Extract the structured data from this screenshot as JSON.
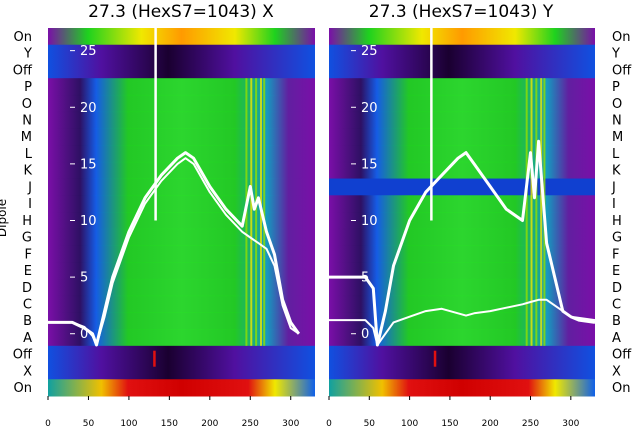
{
  "colors": {
    "background": "#7a0fa8",
    "low": "#1a0030",
    "mid_blue": "#1060e8",
    "green": "#1ed21e",
    "yellow": "#f0e800",
    "orange": "#ff9a00",
    "red": "#e01010",
    "trace": "#ffffff"
  },
  "chart_data": [
    {
      "type": "heatmap",
      "title": "27.3 (HexS7=1043) X",
      "ylabel": "Dipole",
      "row_labels": [
        "On",
        "Y",
        "Off",
        "P",
        "O",
        "N",
        "M",
        "L",
        "K",
        "J",
        "I",
        "H",
        "G",
        "F",
        "E",
        "D",
        "C",
        "B",
        "A",
        "Off",
        "X",
        "On"
      ],
      "row_labels_side": "left",
      "x_ticks": [
        0,
        50,
        100,
        150,
        200,
        250,
        300
      ],
      "xlim": [
        0,
        330
      ],
      "y_ticks": [
        0,
        5,
        10,
        15,
        20,
        25
      ],
      "ylim": [
        -5.5,
        27
      ],
      "grid": false,
      "series": [
        {
          "x": [
            0,
            30,
            45,
            55,
            60,
            70,
            80,
            100,
            120,
            140,
            160,
            170,
            180,
            200,
            220,
            240,
            250,
            255,
            260,
            270,
            280,
            290,
            300,
            310
          ],
          "y": [
            1,
            1,
            0.5,
            0,
            -1,
            2,
            5,
            9,
            12,
            14,
            15.5,
            16,
            15.5,
            13,
            11,
            9.5,
            13,
            11,
            12,
            9,
            7,
            3,
            1,
            0
          ]
        },
        {
          "x": [
            0,
            30,
            45,
            55,
            60,
            70,
            80,
            100,
            120,
            140,
            160,
            170,
            180,
            200,
            220,
            240,
            250,
            260,
            270,
            280,
            290,
            300,
            310
          ],
          "y": [
            1,
            1,
            0.6,
            -0.2,
            -1,
            1.5,
            4.5,
            8.5,
            11.5,
            13.5,
            15,
            15.5,
            15,
            12.5,
            10.5,
            9,
            8.5,
            8,
            7.5,
            6,
            2.5,
            0.5,
            0
          ]
        }
      ]
    },
    {
      "type": "heatmap",
      "title": "27.3 (HexS7=1043) Y",
      "row_labels": [
        "On",
        "Y",
        "Off",
        "P",
        "O",
        "N",
        "M",
        "L",
        "K",
        "J",
        "I",
        "H",
        "G",
        "F",
        "E",
        "D",
        "C",
        "B",
        "A",
        "Off",
        "X",
        "On"
      ],
      "row_labels_side": "right",
      "x_ticks": [
        0,
        50,
        100,
        150,
        200,
        250,
        300
      ],
      "xlim": [
        0,
        330
      ],
      "y_ticks": [
        0,
        5,
        10,
        15,
        20,
        25
      ],
      "ylim": [
        -5.5,
        27
      ],
      "grid": false,
      "series": [
        {
          "x": [
            0,
            30,
            45,
            55,
            60,
            70,
            80,
            100,
            120,
            140,
            160,
            170,
            180,
            200,
            220,
            240,
            250,
            255,
            260,
            270,
            280,
            290,
            300,
            310,
            330
          ],
          "y": [
            5,
            5,
            5,
            4,
            -1,
            2,
            6,
            10,
            12.5,
            14,
            15.5,
            16,
            15,
            13,
            11,
            10,
            16,
            12,
            17,
            8,
            5,
            2,
            1.5,
            1.2,
            1
          ]
        },
        {
          "x": [
            0,
            30,
            45,
            55,
            60,
            70,
            80,
            100,
            120,
            140,
            160,
            170,
            180,
            200,
            220,
            240,
            250,
            260,
            270,
            280,
            290,
            300,
            330
          ],
          "y": [
            1.2,
            1.2,
            1.2,
            0.5,
            -1,
            0,
            1,
            1.5,
            2,
            2.2,
            1.8,
            1.6,
            1.8,
            2,
            2.3,
            2.6,
            2.8,
            3,
            3,
            2.5,
            2,
            1.5,
            1.2
          ]
        }
      ]
    }
  ]
}
